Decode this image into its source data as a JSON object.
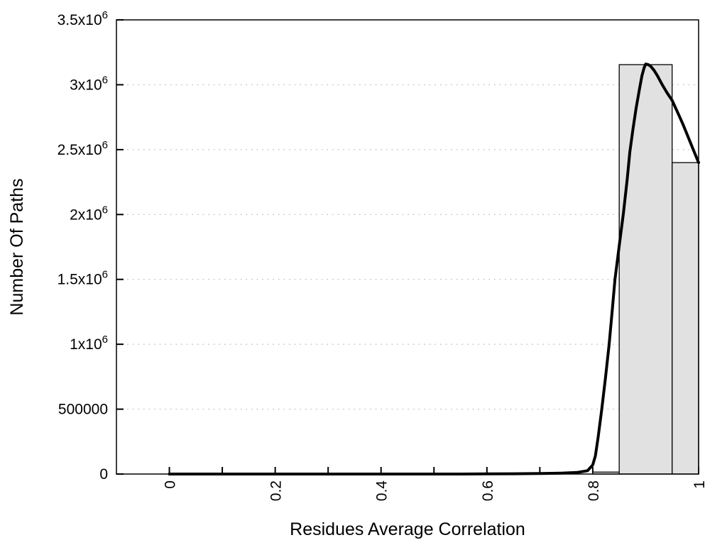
{
  "figure": {
    "background": "#ffffff"
  },
  "chart_data": {
    "type": "bar",
    "subtype": "histogram-with-fit-curve",
    "title": "",
    "xlabel": "Residues Average Correlation",
    "ylabel": "Number Of Paths",
    "xlim": [
      -0.1,
      1.0
    ],
    "ylim": [
      0,
      3500000
    ],
    "grid": "y-dotted",
    "legend": "none",
    "x_ticks": [
      {
        "value": 0.0,
        "label": "0"
      },
      {
        "value": 0.1,
        "label": ""
      },
      {
        "value": 0.2,
        "label": "0.2"
      },
      {
        "value": 0.3,
        "label": ""
      },
      {
        "value": 0.4,
        "label": "0.4"
      },
      {
        "value": 0.5,
        "label": ""
      },
      {
        "value": 0.6,
        "label": "0.6"
      },
      {
        "value": 0.7,
        "label": ""
      },
      {
        "value": 0.8,
        "label": "0.8"
      },
      {
        "value": 0.9,
        "label": ""
      },
      {
        "value": 1.0,
        "label": "1"
      }
    ],
    "y_ticks": [
      {
        "value": 0,
        "label": "0"
      },
      {
        "value": 500000,
        "label": "500000"
      },
      {
        "value": 1000000,
        "label": "1x10^6"
      },
      {
        "value": 1500000,
        "label": "1.5x10^6"
      },
      {
        "value": 2000000,
        "label": "2x10^6"
      },
      {
        "value": 2500000,
        "label": "2.5x10^6"
      },
      {
        "value": 3000000,
        "label": "3x10^6"
      },
      {
        "value": 3500000,
        "label": "3.5x10^6"
      }
    ],
    "grid_y_values": [
      500000,
      1000000,
      1500000,
      2000000,
      2500000,
      3000000
    ],
    "bars": [
      {
        "x0": 0.8,
        "x1": 0.85,
        "value": 15000
      },
      {
        "x0": 0.85,
        "x1": 0.95,
        "value": 3155000
      },
      {
        "x0": 0.95,
        "x1": 1.0,
        "value": 2400000
      }
    ],
    "curve_points": [
      [
        0.0,
        0
      ],
      [
        0.05,
        0
      ],
      [
        0.1,
        0
      ],
      [
        0.15,
        0
      ],
      [
        0.2,
        0
      ],
      [
        0.25,
        0
      ],
      [
        0.3,
        0
      ],
      [
        0.35,
        0
      ],
      [
        0.4,
        0
      ],
      [
        0.45,
        0
      ],
      [
        0.5,
        0
      ],
      [
        0.55,
        0
      ],
      [
        0.6,
        1000
      ],
      [
        0.65,
        2000
      ],
      [
        0.7,
        4000
      ],
      [
        0.74,
        7000
      ],
      [
        0.77,
        12000
      ],
      [
        0.79,
        25000
      ],
      [
        0.8,
        70000
      ],
      [
        0.805,
        140000
      ],
      [
        0.81,
        280000
      ],
      [
        0.817,
        500000
      ],
      [
        0.824,
        740000
      ],
      [
        0.831,
        1000000
      ],
      [
        0.837,
        1270000
      ],
      [
        0.842,
        1500000
      ],
      [
        0.85,
        1760000
      ],
      [
        0.858,
        2010000
      ],
      [
        0.865,
        2270000
      ],
      [
        0.87,
        2480000
      ],
      [
        0.876,
        2660000
      ],
      [
        0.882,
        2820000
      ],
      [
        0.888,
        2960000
      ],
      [
        0.893,
        3070000
      ],
      [
        0.897,
        3130000
      ],
      [
        0.9,
        3160000
      ],
      [
        0.905,
        3155000
      ],
      [
        0.91,
        3140000
      ],
      [
        0.916,
        3110000
      ],
      [
        0.922,
        3070000
      ],
      [
        0.93,
        3010000
      ],
      [
        0.94,
        2940000
      ],
      [
        0.95,
        2880000
      ],
      [
        0.96,
        2790000
      ],
      [
        0.97,
        2700000
      ],
      [
        0.98,
        2600000
      ],
      [
        0.99,
        2500000
      ],
      [
        1.0,
        2400000
      ]
    ],
    "colors": {
      "bar_fill": "#e1e1e1",
      "bar_stroke": "#000000",
      "curve": "#000000",
      "grid": "#c0c0c0",
      "border": "#000000",
      "tick": "#000000"
    }
  }
}
